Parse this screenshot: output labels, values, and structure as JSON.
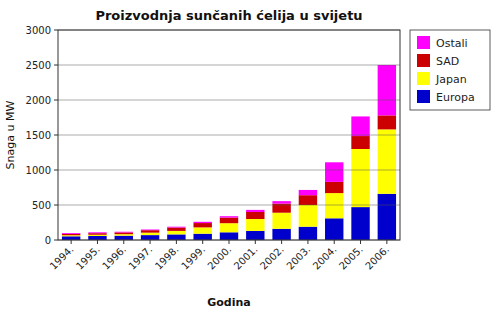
{
  "chart_data": {
    "type": "bar",
    "stacked": true,
    "title": "Proizvodnja sunčanih ćelija u svijetu",
    "xlabel": "Godina",
    "ylabel": "Snaga u MW",
    "categories": [
      "1994.",
      "1995.",
      "1996.",
      "1997.",
      "1998.",
      "1999.",
      "2000.",
      "2001.",
      "2002.",
      "2003.",
      "2004.",
      "2005.",
      "2006."
    ],
    "series": [
      {
        "name": "Europa",
        "color": "#0000CC",
        "values": [
          53,
          57,
          62,
          70,
          80,
          90,
          110,
          130,
          160,
          190,
          310,
          470,
          660
        ]
      },
      {
        "name": "Japan",
        "color": "#FFFF00",
        "values": [
          15,
          18,
          21,
          35,
          50,
          90,
          130,
          170,
          230,
          310,
          360,
          830,
          920
        ]
      },
      {
        "name": "SAD",
        "color": "#CC0000",
        "values": [
          20,
          22,
          25,
          35,
          48,
          62,
          80,
          100,
          130,
          140,
          160,
          185,
          200
        ]
      },
      {
        "name": "Ostali",
        "color": "#FF00FF",
        "values": [
          12,
          13,
          10,
          10,
          12,
          18,
          20,
          30,
          35,
          75,
          280,
          280,
          720
        ]
      }
    ],
    "ylim": [
      0,
      3000
    ],
    "yticks": [
      0,
      500,
      1000,
      1500,
      2000,
      2500,
      3000
    ],
    "grid": true,
    "legend": "right"
  }
}
